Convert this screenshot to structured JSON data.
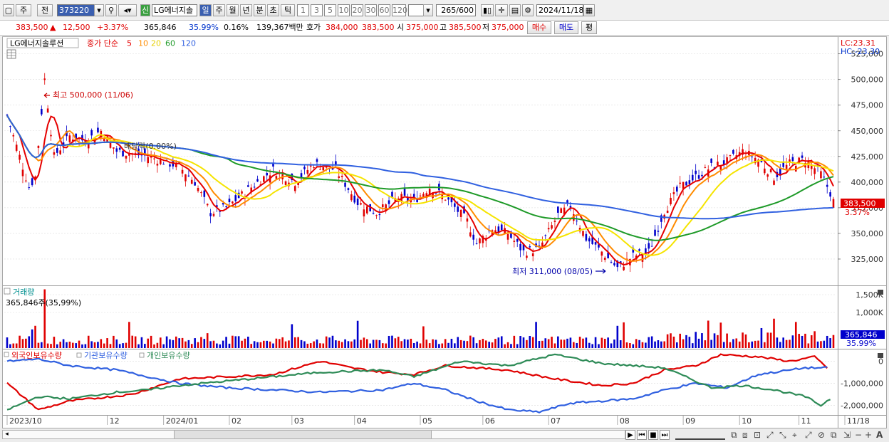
{
  "toolbar": {
    "period_jong": "주",
    "prev_label": "전",
    "code": "373220",
    "new_badge": "신",
    "stock_name": "LG에너지솔",
    "periods": [
      "일",
      "주",
      "월",
      "년",
      "분",
      "초",
      "틱"
    ],
    "minutes": [
      "1",
      "3",
      "5",
      "10",
      "20",
      "30",
      "60",
      "120"
    ],
    "count_display": "265",
    "count_total": "/600",
    "date": "2024/11/18"
  },
  "quote": {
    "price": "383,500",
    "arrow": "▲",
    "change": "12,500",
    "change_pct": "+3.37%",
    "volume": "365,846",
    "vol_pct": "35.99%",
    "turnover": "0.16%",
    "amount": "139,367백만",
    "ask_label": "호가",
    "ask": "384,000",
    "bid": "383,500",
    "open_label": "시",
    "open": "375,000",
    "high_label": "고",
    "high": "385,500",
    "low_label": "저",
    "low": "375,000",
    "buy_btn": "매수",
    "sell_btn": "매도",
    "eval_btn": "평"
  },
  "legend": {
    "name": "LG에너지솔루션",
    "ma_prefix": "종가 단순",
    "ma_periods": [
      "5",
      "10",
      "20",
      "60",
      "120"
    ]
  },
  "colors": {
    "up": "#e00000",
    "down": "#0000cc",
    "ma5": "#e60000",
    "ma10": "#ff8c00",
    "ma20": "#f5e400",
    "ma60": "#1e9a28",
    "ma120": "#3060e0",
    "foreign": "#e00000",
    "inst": "#3060e0",
    "indiv": "#2e8b57"
  },
  "chart_data": [
    {
      "type": "candlestick",
      "title": "LG에너지솔루션",
      "ylim": [
        300000,
        540000
      ],
      "y_ticks": [
        "325,000",
        "350,000",
        "375,000",
        "400,000",
        "425,000",
        "450,000",
        "475,000",
        "500,000",
        "525,000"
      ],
      "lc_label": "LC:23.31",
      "hc_label": "HC:-23.30",
      "last_price_label": "383,500",
      "last_pct_label": "3.37%",
      "annotations": {
        "high": "최고 500,000 (11/06)",
        "low": "최저 311,000 (08/05)",
        "ex_div": "배당락(0.00%)"
      },
      "x_labels": [
        [
          "2023/10",
          0
        ],
        [
          "12",
          32
        ],
        [
          "2024/01",
          50
        ],
        [
          "02",
          71
        ],
        [
          "03",
          91
        ],
        [
          "04",
          111
        ],
        [
          "05",
          132
        ],
        [
          "06",
          152
        ],
        [
          "07",
          173
        ],
        [
          "08",
          195
        ],
        [
          "09",
          216
        ],
        [
          "10",
          234
        ],
        [
          "11",
          253
        ],
        [
          "11/18",
          264
        ]
      ],
      "close_keypoints": [
        [
          0,
          465000
        ],
        [
          3,
          435000
        ],
        [
          7,
          395000
        ],
        [
          9,
          405000
        ],
        [
          12,
          500000
        ],
        [
          15,
          425000
        ],
        [
          20,
          445000
        ],
        [
          25,
          440000
        ],
        [
          30,
          450000
        ],
        [
          35,
          430000
        ],
        [
          45,
          425000
        ],
        [
          55,
          415000
        ],
        [
          60,
          400000
        ],
        [
          65,
          370000
        ],
        [
          70,
          375000
        ],
        [
          78,
          395000
        ],
        [
          85,
          412000
        ],
        [
          92,
          400000
        ],
        [
          98,
          418000
        ],
        [
          105,
          412000
        ],
        [
          112,
          380000
        ],
        [
          118,
          370000
        ],
        [
          125,
          385000
        ],
        [
          130,
          382000
        ],
        [
          135,
          395000
        ],
        [
          140,
          385000
        ],
        [
          147,
          362000
        ],
        [
          150,
          340000
        ],
        [
          155,
          355000
        ],
        [
          160,
          350000
        ],
        [
          165,
          332000
        ],
        [
          170,
          335000
        ],
        [
          176,
          368000
        ],
        [
          180,
          377000
        ],
        [
          185,
          345000
        ],
        [
          190,
          332000
        ],
        [
          195,
          316000
        ],
        [
          200,
          328000
        ],
        [
          205,
          332000
        ],
        [
          210,
          372000
        ],
        [
          215,
          395000
        ],
        [
          220,
          405000
        ],
        [
          225,
          415000
        ],
        [
          230,
          420000
        ],
        [
          235,
          430000
        ],
        [
          240,
          422000
        ],
        [
          245,
          405000
        ],
        [
          250,
          418000
        ],
        [
          255,
          422000
        ],
        [
          260,
          408000
        ],
        [
          264,
          383500
        ]
      ],
      "series": [
        {
          "name": "5",
          "kind": "MA"
        },
        {
          "name": "10",
          "kind": "MA"
        },
        {
          "name": "20",
          "kind": "MA"
        },
        {
          "name": "60",
          "kind": "MA"
        },
        {
          "name": "120",
          "kind": "MA"
        }
      ]
    },
    {
      "type": "bar",
      "title": "거래량",
      "last_value_label": "365,846주(35,99%)",
      "y_ticks": [
        "1,000K",
        "1,500K"
      ],
      "ylim": [
        0,
        1700000
      ],
      "last_volume": "365,846",
      "last_volume_pct": "35.99%",
      "spike_volume": 1650000,
      "typical_volume": 250000
    },
    {
      "type": "line",
      "series": [
        {
          "name": "외국인보유수량"
        },
        {
          "name": "기관보유수량"
        },
        {
          "name": "개인보유수량"
        }
      ],
      "y_ticks": [
        "0",
        "-1,000,000",
        "-2,000,000"
      ],
      "ylim": [
        -2400000,
        500000
      ],
      "foreign_keypoints": [
        [
          0,
          -1000000
        ],
        [
          10,
          -2200000
        ],
        [
          20,
          -1800000
        ],
        [
          40,
          -1500000
        ],
        [
          55,
          -800000
        ],
        [
          70,
          -700000
        ],
        [
          85,
          -600000
        ],
        [
          100,
          0
        ],
        [
          110,
          -300000
        ],
        [
          120,
          -500000
        ],
        [
          130,
          -600000
        ],
        [
          140,
          -200000
        ],
        [
          150,
          -300000
        ],
        [
          160,
          -400000
        ],
        [
          175,
          -800000
        ],
        [
          190,
          -1100000
        ],
        [
          200,
          -1000000
        ],
        [
          210,
          -400000
        ],
        [
          220,
          -200000
        ],
        [
          228,
          300000
        ],
        [
          240,
          200000
        ],
        [
          250,
          0
        ],
        [
          258,
          200000
        ],
        [
          262,
          -300000
        ]
      ],
      "inst_keypoints": [
        [
          0,
          0
        ],
        [
          10,
          100000
        ],
        [
          20,
          -200000
        ],
        [
          35,
          -400000
        ],
        [
          45,
          -700000
        ],
        [
          55,
          -1000000
        ],
        [
          70,
          -1200000
        ],
        [
          85,
          -1300000
        ],
        [
          100,
          -1400000
        ],
        [
          120,
          -1300000
        ],
        [
          130,
          -1000000
        ],
        [
          140,
          -1300000
        ],
        [
          150,
          -1800000
        ],
        [
          160,
          -2200000
        ],
        [
          170,
          -2300000
        ],
        [
          180,
          -1900000
        ],
        [
          190,
          -1800000
        ],
        [
          200,
          -1700000
        ],
        [
          210,
          -1300000
        ],
        [
          220,
          -1000000
        ],
        [
          230,
          -1200000
        ],
        [
          240,
          -600000
        ],
        [
          250,
          -400000
        ],
        [
          255,
          -300000
        ],
        [
          262,
          -300000
        ]
      ],
      "indiv_keypoints": [
        [
          0,
          -2200000
        ],
        [
          10,
          -1600000
        ],
        [
          20,
          -1700000
        ],
        [
          35,
          -1400000
        ],
        [
          45,
          -1300000
        ],
        [
          55,
          -1100000
        ],
        [
          70,
          -900000
        ],
        [
          85,
          -700000
        ],
        [
          100,
          -500000
        ],
        [
          120,
          -400000
        ],
        [
          130,
          -700000
        ],
        [
          145,
          0
        ],
        [
          160,
          -200000
        ],
        [
          175,
          300000
        ],
        [
          190,
          -100000
        ],
        [
          200,
          -200000
        ],
        [
          210,
          -300000
        ],
        [
          225,
          -1200000
        ],
        [
          235,
          -1100000
        ],
        [
          245,
          -1300000
        ],
        [
          255,
          -1600000
        ],
        [
          260,
          -2000000
        ],
        [
          263,
          -1700000
        ]
      ]
    }
  ]
}
